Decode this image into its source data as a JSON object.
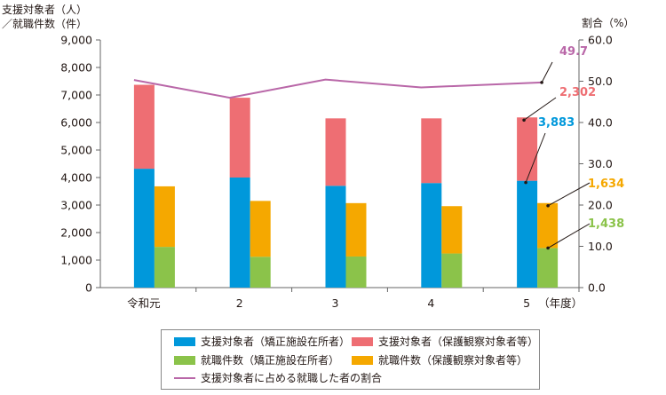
{
  "chart_data": {
    "type": "bar",
    "categories": [
      "令和元",
      "2",
      "3",
      "4",
      "5"
    ],
    "x_unit": "（年度）",
    "left_axis": {
      "label_line1": "支援対象者（人）",
      "label_line2": "／就職件数（件）",
      "min": 0,
      "max": 9000,
      "step": 1000,
      "ticks": [
        "0",
        "1,000",
        "2,000",
        "3,000",
        "4,000",
        "5,000",
        "6,000",
        "7,000",
        "8,000",
        "9,000"
      ]
    },
    "right_axis": {
      "label": "割合（%）",
      "min": 0,
      "max": 60,
      "step": 10,
      "ticks": [
        "0.0",
        "10.0",
        "20.0",
        "30.0",
        "40.0",
        "50.0",
        "60.0"
      ]
    },
    "series": [
      {
        "name": "支援対象者（矯正施設在所者）",
        "color": "#0098DB",
        "stack": "A",
        "values": [
          4320,
          4000,
          3700,
          3800,
          3883
        ]
      },
      {
        "name": "支援対象者（保護観察対象者等）",
        "color": "#EE6E73",
        "stack": "A",
        "values": [
          3050,
          2900,
          2450,
          2350,
          2302
        ]
      },
      {
        "name": "就職件数（矯正施設在所者）",
        "color": "#8BC34A",
        "stack": "B",
        "values": [
          1480,
          1120,
          1130,
          1240,
          1438
        ]
      },
      {
        "name": "就職件数（保護観察対象者等）",
        "color": "#F5A800",
        "stack": "B",
        "values": [
          2200,
          2030,
          1940,
          1720,
          1634
        ]
      },
      {
        "name": "支援対象者に占める就職した者の割合",
        "color": "#B967A8",
        "type": "line",
        "axis": "right",
        "values": [
          50.3,
          46.0,
          50.4,
          48.5,
          49.7
        ]
      }
    ],
    "annotations": [
      {
        "text": "49.7",
        "color": "#B967A8"
      },
      {
        "text": "2,302",
        "color": "#EE6E73"
      },
      {
        "text": "3,883",
        "color": "#0098DB"
      },
      {
        "text": "1,634",
        "color": "#F5A800"
      },
      {
        "text": "1,438",
        "color": "#8BC34A"
      }
    ],
    "legend_position": "bottom",
    "grid": false
  }
}
